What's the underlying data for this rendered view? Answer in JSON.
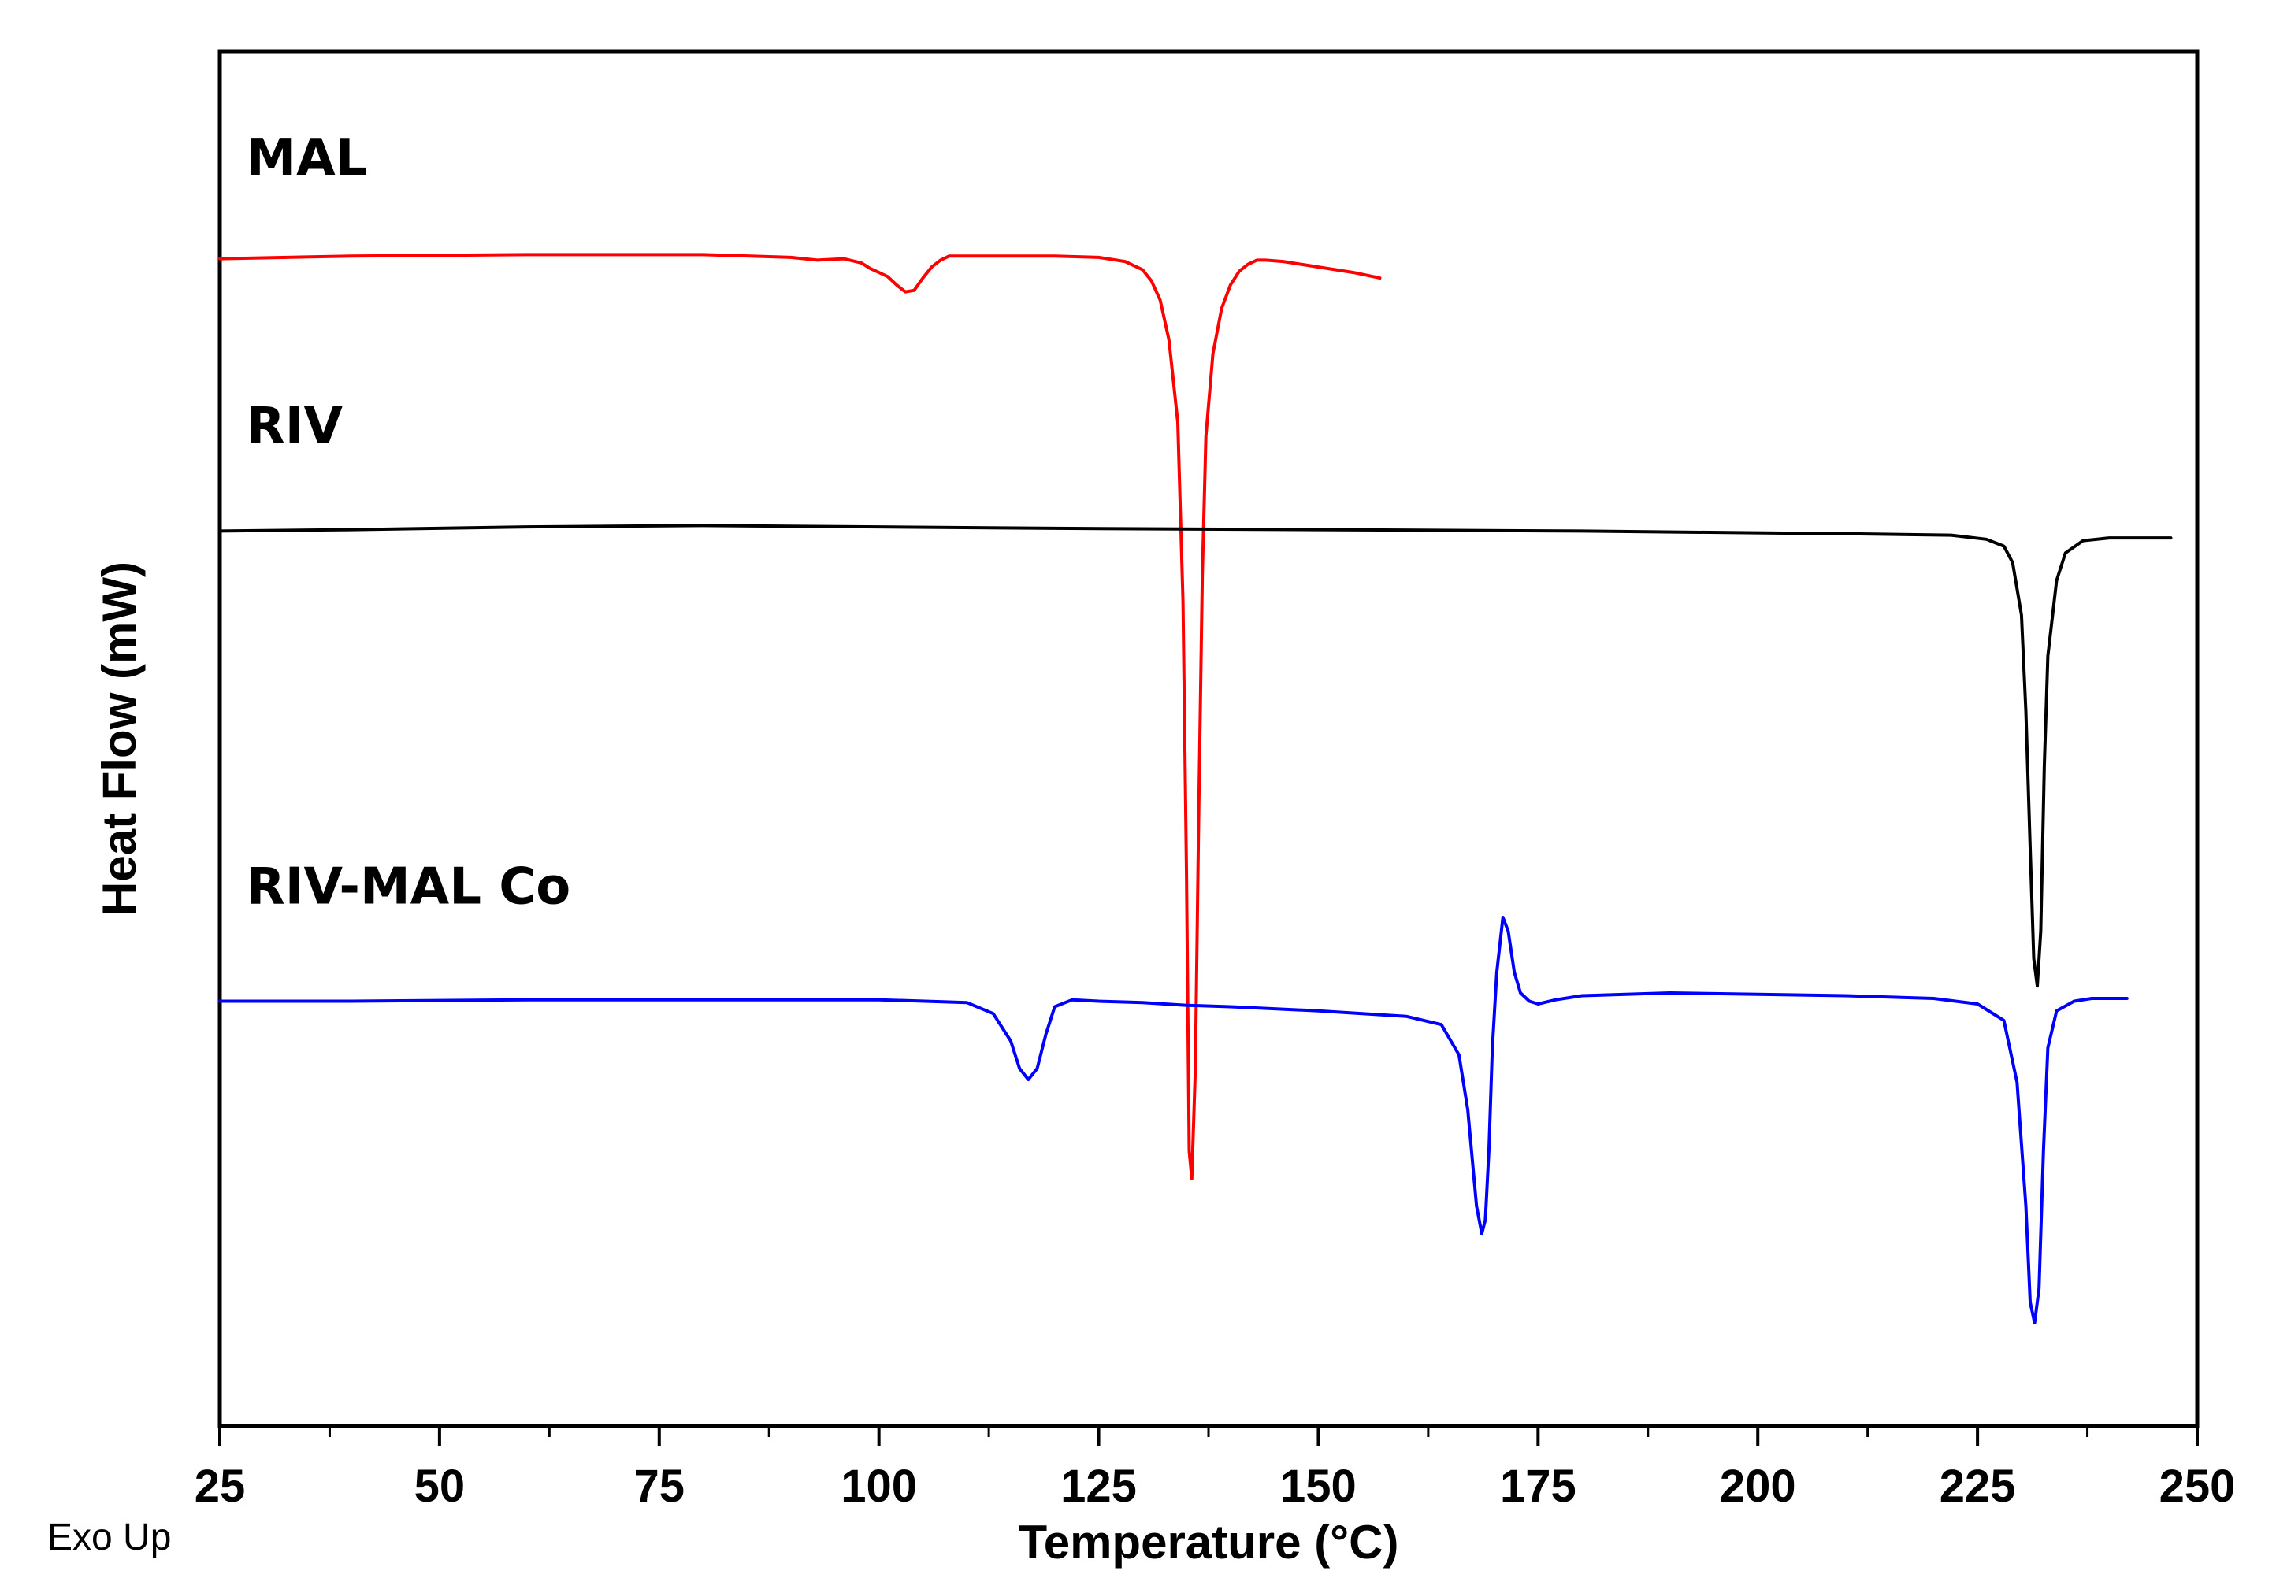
{
  "chart_data": {
    "type": "line",
    "title": "",
    "xlabel": "Temperature (°C)",
    "ylabel": "Heat Flow (mW)",
    "xlim": [
      25,
      250
    ],
    "ylim": [
      0,
      100
    ],
    "xticks": [
      25,
      50,
      75,
      100,
      125,
      150,
      175,
      200,
      225,
      250
    ],
    "yticks": [],
    "grid": false,
    "note": "Exo Up",
    "series": [
      {
        "name": "MAL",
        "color": "#ff0000",
        "x": [
          25,
          40,
          60,
          80,
          90,
          93,
          96,
          98,
          99,
          100,
          101,
          102,
          103,
          104,
          105,
          106,
          107,
          108,
          110,
          115,
          120,
          125,
          128,
          130,
          131,
          132,
          133,
          134,
          134.6,
          135,
          135.3,
          135.6,
          136,
          136.4,
          136.8,
          137.2,
          138,
          139,
          140,
          141,
          142,
          143,
          144,
          146,
          150,
          154,
          157
        ],
        "y": [
          84.9,
          85.1,
          85.2,
          85.2,
          85.0,
          84.8,
          84.9,
          84.6,
          84.2,
          83.9,
          83.6,
          83.0,
          82.5,
          82.6,
          83.5,
          84.3,
          84.8,
          85.1,
          85.1,
          85.1,
          85.1,
          85.0,
          84.7,
          84.1,
          83.3,
          81.9,
          79.0,
          73.0,
          60.0,
          40.0,
          20.0,
          18.0,
          26.0,
          45.0,
          62.0,
          72.0,
          78.0,
          81.3,
          83.0,
          84.0,
          84.5,
          84.8,
          84.8,
          84.7,
          84.3,
          83.9,
          83.5
        ]
      },
      {
        "name": "RIV",
        "color": "#000000",
        "x": [
          25,
          40,
          60,
          80,
          100,
          120,
          150,
          180,
          210,
          222,
          226,
          228,
          229,
          230,
          230.5,
          231,
          231.4,
          231.8,
          232.2,
          232.6,
          233,
          234,
          235,
          237,
          240,
          247
        ],
        "y": [
          65.1,
          65.2,
          65.4,
          65.5,
          65.4,
          65.3,
          65.2,
          65.1,
          64.9,
          64.8,
          64.5,
          64.0,
          62.8,
          59.0,
          52.0,
          42.0,
          34.0,
          32.0,
          36.0,
          48.0,
          56.0,
          61.5,
          63.5,
          64.4,
          64.6,
          64.6
        ]
      },
      {
        "name": "RIV-MAL  Co",
        "color": "#0000ff",
        "x": [
          25,
          40,
          60,
          80,
          100,
          110,
          113,
          115,
          116,
          117,
          118,
          119,
          120,
          122,
          125,
          130,
          135,
          140,
          150,
          160,
          164,
          166,
          167,
          168,
          168.6,
          169,
          169.4,
          169.8,
          170.3,
          171,
          171.6,
          172.3,
          173,
          174,
          175,
          177,
          180,
          190,
          200,
          210,
          220,
          225,
          228,
          229.5,
          230.5,
          231,
          231.5,
          232,
          232.5,
          233,
          234,
          236,
          238,
          242
        ],
        "y": [
          30.9,
          30.9,
          31.0,
          31.0,
          31.0,
          30.8,
          30.0,
          28.0,
          26.0,
          25.2,
          26.0,
          28.5,
          30.5,
          31.0,
          30.9,
          30.8,
          30.6,
          30.5,
          30.2,
          29.8,
          29.2,
          27.0,
          23.0,
          16.0,
          14.0,
          15.0,
          20.0,
          27.5,
          33.0,
          37.0,
          36.0,
          33.0,
          31.5,
          30.9,
          30.7,
          31.0,
          31.3,
          31.5,
          31.4,
          31.3,
          31.1,
          30.7,
          29.5,
          25.0,
          16.0,
          9.0,
          7.5,
          10.0,
          20.0,
          27.5,
          30.2,
          30.9,
          31.1,
          31.1
        ]
      }
    ],
    "labels": [
      {
        "text": "MAL",
        "x": 28,
        "y": 91
      },
      {
        "text": "RIV",
        "x": 28,
        "y": 71.5
      },
      {
        "text": "RIV-MAL  Co",
        "x": 28,
        "y": 38
      }
    ]
  }
}
